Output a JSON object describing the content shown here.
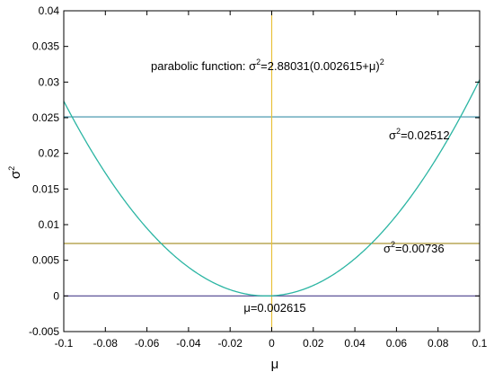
{
  "chart_data": {
    "type": "line",
    "title": "",
    "xlabel": "μ",
    "ylabel": "σ",
    "ylabel_superscript": "2",
    "xlim": [
      -0.1,
      0.1
    ],
    "ylim": [
      -0.005,
      0.04
    ],
    "x_ticks": [
      -0.1,
      -0.08,
      -0.06,
      -0.04,
      -0.02,
      0,
      0.02,
      0.04,
      0.06,
      0.08,
      0.1
    ],
    "x_tick_labels": [
      "-0.1",
      "-0.08",
      "-0.06",
      "-0.04",
      "-0.02",
      "0",
      "0.02",
      "0.04",
      "0.06",
      "0.08",
      "0.1"
    ],
    "y_ticks": [
      -0.005,
      0,
      0.005,
      0.01,
      0.015,
      0.02,
      0.025,
      0.03,
      0.035,
      0.04
    ],
    "y_tick_labels": [
      "-0.005",
      "0",
      "0.005",
      "0.01",
      "0.015",
      "0.02",
      "0.025",
      "0.03",
      "0.035",
      "0.04"
    ],
    "grid": false,
    "parabola": {
      "a": 2.88031,
      "shift": 0.002615,
      "color": "#2bb5a3",
      "label_prefix": "parabolic function: σ",
      "label_sup1": "2",
      "label_mid": "=2.88031(0.002615+μ)",
      "label_sup2": "2"
    },
    "hlines": [
      {
        "y": 0.02512,
        "color": "#3a8fa8",
        "label_prefix": "σ",
        "label_sup": "2",
        "label_value": "=0.02512"
      },
      {
        "y": 0.00736,
        "color": "#a08a1e",
        "label_prefix": "σ",
        "label_sup": "2",
        "label_value": "=0.00736"
      },
      {
        "y": 0,
        "color": "#4a3f8c",
        "label_prefix": "",
        "label_sup": "",
        "label_value": "μ=0.002615"
      }
    ],
    "vline": {
      "x": 0,
      "color": "#e8c13a"
    }
  }
}
